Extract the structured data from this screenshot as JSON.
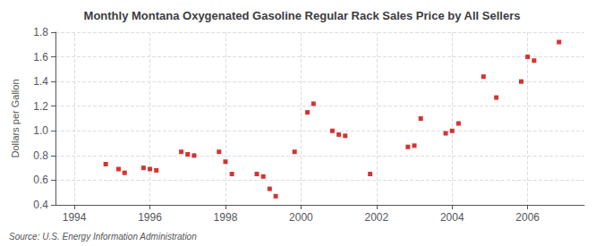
{
  "chart_data": {
    "type": "scatter",
    "title": "Monthly Montana Oxygenated Gasoline Regular Rack Sales Price by All Sellers",
    "ylabel": "Dollars per Gallon",
    "annotation": "Source: U.S. Energy Information Administration",
    "x": [
      1994.83,
      1995.17,
      1995.33,
      1995.83,
      1996.0,
      1996.17,
      1996.83,
      1997.0,
      1997.17,
      1997.83,
      1998.0,
      1998.17,
      1998.83,
      1999.0,
      1999.17,
      1999.33,
      1999.83,
      2000.17,
      2000.33,
      2000.83,
      2001.0,
      2001.17,
      2001.83,
      2002.83,
      2003.0,
      2003.17,
      2003.83,
      2004.0,
      2004.17,
      2004.83,
      2005.17,
      2005.83,
      2006.0,
      2006.17,
      2006.83
    ],
    "values": [
      0.73,
      0.69,
      0.66,
      0.7,
      0.69,
      0.68,
      0.83,
      0.81,
      0.8,
      0.83,
      0.75,
      0.65,
      0.65,
      0.63,
      0.53,
      0.47,
      0.83,
      1.15,
      1.22,
      1.0,
      0.97,
      0.96,
      0.65,
      0.87,
      0.88,
      1.1,
      0.98,
      1.0,
      1.06,
      1.44,
      1.27,
      1.4,
      1.6,
      1.57,
      1.72
    ],
    "color": "#cc0000",
    "marker": "square",
    "xlim": [
      1993.5,
      2007.5
    ],
    "xticks": [
      1994,
      1996,
      1998,
      2000,
      2002,
      2004,
      2006
    ],
    "ylim": [
      0.4,
      1.8
    ],
    "yticks": [
      0.4,
      0.6,
      0.8,
      {
        "value": 1.0,
        "label": "1.0"
      },
      1.2,
      1.4,
      1.6,
      1.8
    ],
    "grid": true
  }
}
